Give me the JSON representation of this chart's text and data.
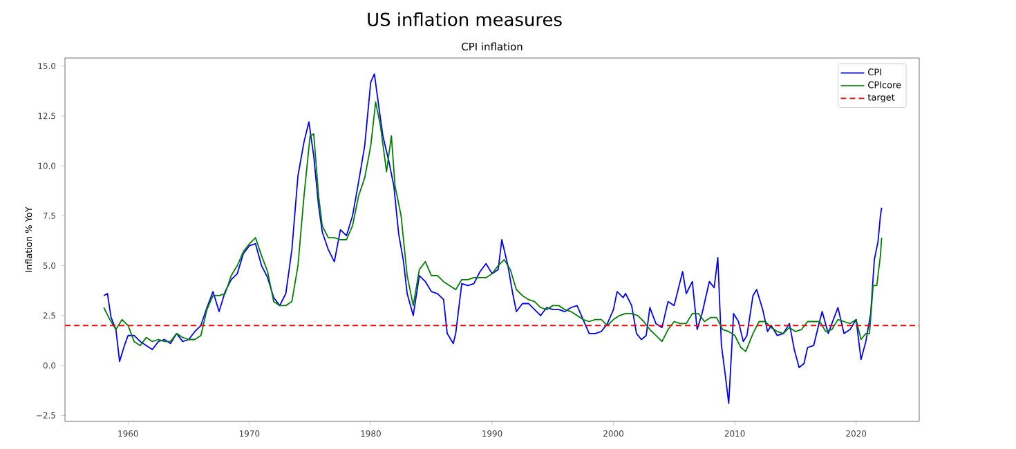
{
  "chart_data": {
    "type": "line",
    "title": "US inflation measures",
    "subtitle": "CPI inflation",
    "ylabel": "Inflation % YoY",
    "xlim": [
      1954.8,
      2025.2
    ],
    "ylim": [
      -2.8,
      15.4
    ],
    "xticks": [
      1960,
      1970,
      1980,
      1990,
      2000,
      2010,
      2020
    ],
    "yticks": [
      {
        "value": -2.5,
        "label": "−2.5"
      },
      {
        "value": 0,
        "label": "0.0"
      },
      {
        "value": 2.5,
        "label": "2.5"
      },
      {
        "value": 5,
        "label": "5.0"
      },
      {
        "value": 7.5,
        "label": "7.5"
      },
      {
        "value": 10,
        "label": "10.0"
      },
      {
        "value": 12.5,
        "label": "12.5"
      },
      {
        "value": 15,
        "label": "15.0"
      }
    ],
    "legend": "top right",
    "series": [
      {
        "name": "CPI",
        "color": "#0000ff",
        "x": [
          1958.0,
          1958.3,
          1958.6,
          1959.0,
          1959.3,
          1959.7,
          1960.0,
          1960.5,
          1961.0,
          1961.5,
          1962.0,
          1962.5,
          1963.0,
          1963.5,
          1964.0,
          1964.5,
          1965.0,
          1965.5,
          1966.0,
          1966.5,
          1967.0,
          1967.5,
          1968.0,
          1968.5,
          1969.0,
          1969.5,
          1970.0,
          1970.5,
          1971.0,
          1971.5,
          1972.0,
          1972.5,
          1973.0,
          1973.5,
          1974.0,
          1974.5,
          1974.9,
          1975.3,
          1975.7,
          1976.0,
          1976.5,
          1977.0,
          1977.5,
          1978.0,
          1978.5,
          1979.0,
          1979.5,
          1980.0,
          1980.3,
          1980.7,
          1981.0,
          1981.5,
          1981.9,
          1982.3,
          1982.7,
          1983.0,
          1983.5,
          1984.0,
          1984.5,
          1985.0,
          1985.5,
          1986.0,
          1986.3,
          1986.8,
          1987.0,
          1987.5,
          1988.0,
          1988.5,
          1989.0,
          1989.5,
          1990.0,
          1990.5,
          1990.8,
          1991.3,
          1991.7,
          1992.0,
          1992.5,
          1993.0,
          1993.5,
          1994.0,
          1994.5,
          1995.0,
          1995.5,
          1996.0,
          1996.5,
          1997.0,
          1997.5,
          1998.0,
          1998.5,
          1999.0,
          1999.5,
          2000.0,
          2000.3,
          2000.8,
          2001.0,
          2001.5,
          2001.9,
          2002.3,
          2002.7,
          2003.0,
          2003.5,
          2004.0,
          2004.5,
          2005.0,
          2005.7,
          2006.0,
          2006.5,
          2006.9,
          2007.3,
          2007.9,
          2008.3,
          2008.6,
          2008.9,
          2009.2,
          2009.5,
          2009.9,
          2010.3,
          2010.7,
          2011.0,
          2011.5,
          2011.8,
          2012.3,
          2012.7,
          2013.0,
          2013.5,
          2014.0,
          2014.5,
          2014.9,
          2015.3,
          2015.7,
          2016.0,
          2016.5,
          2016.9,
          2017.2,
          2017.7,
          2018.0,
          2018.5,
          2019.0,
          2019.5,
          2020.0,
          2020.4,
          2020.8,
          2021.2,
          2021.5,
          2021.8,
          2022.0,
          2022.1
        ],
        "values": [
          3.5,
          3.6,
          2.4,
          1.8,
          0.2,
          1.0,
          1.5,
          1.5,
          1.2,
          1.0,
          0.8,
          1.2,
          1.3,
          1.1,
          1.6,
          1.2,
          1.3,
          1.7,
          2.0,
          2.9,
          3.7,
          2.7,
          3.7,
          4.3,
          4.6,
          5.6,
          6.0,
          6.1,
          5.0,
          4.4,
          3.4,
          3.0,
          3.6,
          5.8,
          9.5,
          11.2,
          12.2,
          10.5,
          8.0,
          6.7,
          5.8,
          5.2,
          6.8,
          6.5,
          7.5,
          9.2,
          11.0,
          14.2,
          14.6,
          12.8,
          11.5,
          10.2,
          9.0,
          6.6,
          5.2,
          3.6,
          2.5,
          4.5,
          4.2,
          3.7,
          3.6,
          3.3,
          1.6,
          1.1,
          1.6,
          4.1,
          4.0,
          4.1,
          4.7,
          5.1,
          4.6,
          4.8,
          6.3,
          5.0,
          3.6,
          2.7,
          3.1,
          3.1,
          2.8,
          2.5,
          2.9,
          2.8,
          2.8,
          2.7,
          2.9,
          3.0,
          2.3,
          1.6,
          1.6,
          1.7,
          2.1,
          2.8,
          3.7,
          3.4,
          3.6,
          3.0,
          1.6,
          1.3,
          1.5,
          2.9,
          2.1,
          1.9,
          3.2,
          3.0,
          4.7,
          3.6,
          4.2,
          1.8,
          2.6,
          4.2,
          3.9,
          5.4,
          1.0,
          -0.4,
          -1.9,
          2.6,
          2.2,
          1.2,
          1.5,
          3.5,
          3.8,
          2.8,
          1.7,
          2.0,
          1.5,
          1.6,
          2.1,
          0.8,
          -0.1,
          0.1,
          0.9,
          1.0,
          2.0,
          2.7,
          1.6,
          2.1,
          2.9,
          1.6,
          1.8,
          2.3,
          0.3,
          1.2,
          2.6,
          5.3,
          6.2,
          7.5,
          7.9
        ]
      },
      {
        "name": "CPIcore",
        "color": "#008000",
        "x": [
          1958.0,
          1958.5,
          1959.0,
          1959.5,
          1960.0,
          1960.5,
          1961.0,
          1961.5,
          1962.0,
          1962.5,
          1963.0,
          1963.5,
          1964.0,
          1964.5,
          1965.0,
          1965.5,
          1966.0,
          1966.5,
          1967.0,
          1967.5,
          1968.0,
          1968.5,
          1969.0,
          1969.5,
          1970.0,
          1970.5,
          1971.0,
          1971.5,
          1972.0,
          1972.5,
          1973.0,
          1973.5,
          1974.0,
          1974.5,
          1975.0,
          1975.3,
          1975.7,
          1976.0,
          1976.5,
          1977.0,
          1977.5,
          1978.0,
          1978.5,
          1979.0,
          1979.5,
          1980.0,
          1980.4,
          1980.8,
          1981.3,
          1981.7,
          1982.0,
          1982.5,
          1983.0,
          1983.5,
          1984.0,
          1984.5,
          1985.0,
          1985.5,
          1986.0,
          1986.5,
          1987.0,
          1987.5,
          1988.0,
          1988.5,
          1989.0,
          1989.5,
          1990.0,
          1990.5,
          1991.0,
          1991.5,
          1992.0,
          1992.5,
          1993.0,
          1993.5,
          1994.0,
          1994.5,
          1995.0,
          1995.5,
          1996.0,
          1996.5,
          1997.0,
          1997.5,
          1998.0,
          1998.5,
          1999.0,
          1999.5,
          2000.0,
          2000.5,
          2001.0,
          2001.5,
          2002.0,
          2002.5,
          2003.0,
          2003.5,
          2004.0,
          2004.5,
          2005.0,
          2005.5,
          2006.0,
          2006.5,
          2007.0,
          2007.5,
          2008.0,
          2008.5,
          2009.0,
          2009.5,
          2010.0,
          2010.5,
          2010.9,
          2011.5,
          2012.0,
          2012.5,
          2013.0,
          2013.5,
          2014.0,
          2014.5,
          2015.0,
          2015.5,
          2016.0,
          2016.5,
          2017.0,
          2017.5,
          2018.0,
          2018.5,
          2019.0,
          2019.5,
          2020.0,
          2020.4,
          2020.8,
          2021.1,
          2021.4,
          2021.7,
          2022.0,
          2022.1
        ],
        "values": [
          2.9,
          2.3,
          1.8,
          2.3,
          2.0,
          1.2,
          1.0,
          1.4,
          1.2,
          1.3,
          1.2,
          1.2,
          1.6,
          1.4,
          1.3,
          1.3,
          1.5,
          2.8,
          3.5,
          3.5,
          3.6,
          4.5,
          5.0,
          5.7,
          6.1,
          6.4,
          5.5,
          4.7,
          3.2,
          3.0,
          3.0,
          3.2,
          5.0,
          8.5,
          11.5,
          11.6,
          8.5,
          7.0,
          6.4,
          6.4,
          6.3,
          6.3,
          7.0,
          8.5,
          9.4,
          11.0,
          13.2,
          12.0,
          9.7,
          11.5,
          9.0,
          7.5,
          4.5,
          3.0,
          4.8,
          5.2,
          4.5,
          4.5,
          4.2,
          4.0,
          3.8,
          4.3,
          4.3,
          4.4,
          4.4,
          4.4,
          4.6,
          5.0,
          5.3,
          4.8,
          3.8,
          3.5,
          3.3,
          3.2,
          2.9,
          2.8,
          3.0,
          3.0,
          2.8,
          2.7,
          2.5,
          2.3,
          2.2,
          2.3,
          2.3,
          2.0,
          2.3,
          2.5,
          2.6,
          2.6,
          2.5,
          2.2,
          1.8,
          1.5,
          1.2,
          1.8,
          2.2,
          2.1,
          2.1,
          2.6,
          2.6,
          2.2,
          2.4,
          2.4,
          1.8,
          1.7,
          1.5,
          0.9,
          0.7,
          1.6,
          2.2,
          2.2,
          1.9,
          1.7,
          1.6,
          1.9,
          1.7,
          1.8,
          2.2,
          2.2,
          2.2,
          1.7,
          1.8,
          2.3,
          2.2,
          2.1,
          2.3,
          1.3,
          1.6,
          1.6,
          4.0,
          4.0,
          5.5,
          6.4
        ]
      }
    ],
    "ref_lines": [
      {
        "axis": "y",
        "value": 2,
        "label": "target",
        "color": "#ff0000",
        "line_style": "dashed"
      }
    ]
  }
}
